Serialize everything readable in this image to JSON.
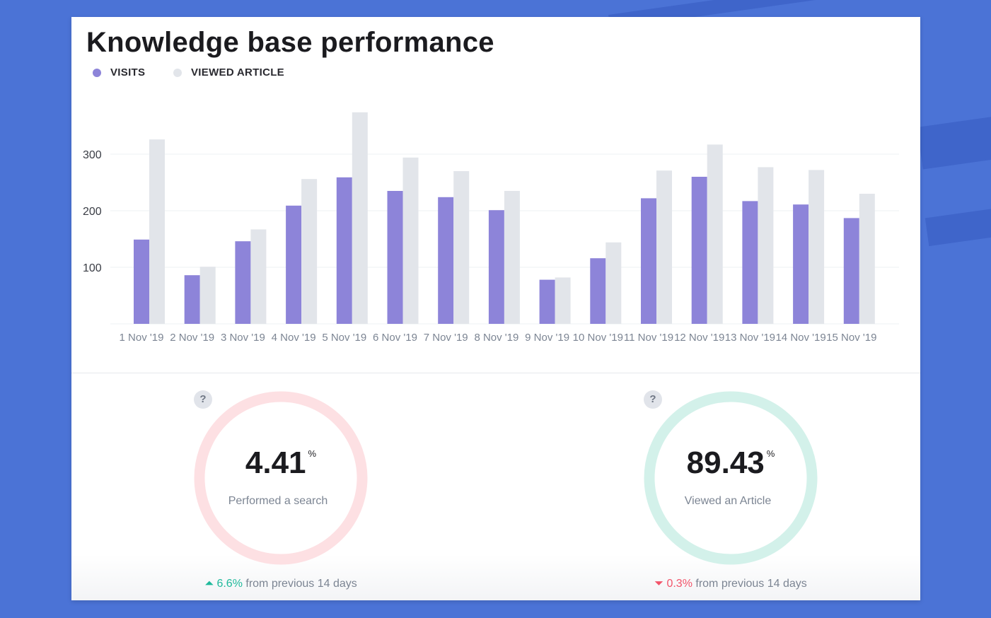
{
  "title": "Knowledge base performance",
  "colors": {
    "visits": "#8d84d9",
    "viewed": "#e2e5ea",
    "good": "#1bb99a",
    "goodTrack": "#d3f1ea",
    "bad": "#f65f72",
    "badTrack": "#fde0e3"
  },
  "chart_data": {
    "type": "bar",
    "categories": [
      "1 Nov '19",
      "2 Nov '19",
      "3 Nov '19",
      "4 Nov '19",
      "5 Nov '19",
      "6 Nov '19",
      "7 Nov '19",
      "8 Nov '19",
      "9 Nov '19",
      "10 Nov '19",
      "11 Nov '19",
      "12 Nov '19",
      "13 Nov '19",
      "14 Nov '19",
      "15 Nov '19"
    ],
    "series": [
      {
        "name": "VISITS",
        "values": [
          149,
          86,
          146,
          209,
          259,
          235,
          224,
          201,
          78,
          116,
          222,
          260,
          217,
          211,
          187
        ]
      },
      {
        "name": "VIEWED ARTICLE",
        "values": [
          326,
          101,
          167,
          256,
          374,
          294,
          270,
          235,
          82,
          144,
          271,
          317,
          277,
          272,
          230
        ]
      }
    ],
    "yticks": [
      100,
      200,
      300
    ],
    "ylim": [
      0,
      380
    ],
    "grid": true,
    "legend": "top-left"
  },
  "metrics": [
    {
      "value": "4.41",
      "unit": "%",
      "label": "Performed a search",
      "percent": 4.41,
      "delta": "6.6%",
      "delta_dir": "up",
      "delta_text": "from previous 14 days",
      "help": "?"
    },
    {
      "value": "89.43",
      "unit": "%",
      "label": "Viewed an Article",
      "percent": 89.43,
      "delta": "0.3%",
      "delta_dir": "down",
      "delta_text": "from previous 14 days",
      "help": "?"
    }
  ]
}
